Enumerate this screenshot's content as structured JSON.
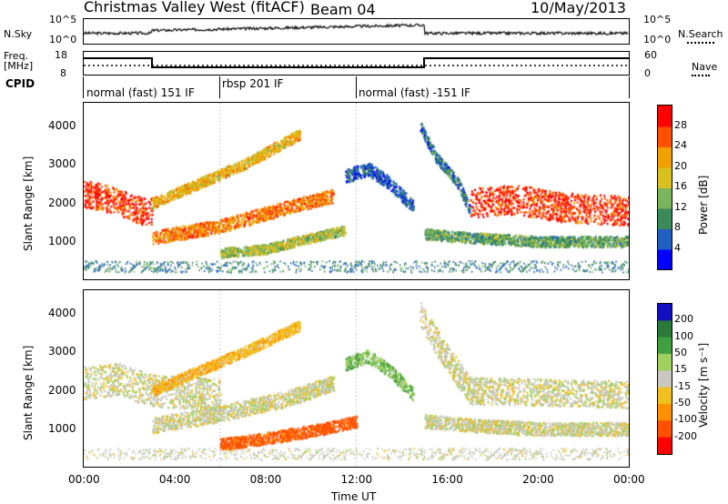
{
  "header": {
    "station": "Christmas Valley West (fitACF)",
    "beam": "Beam 04",
    "date": "10/May/2013"
  },
  "controls": {
    "nsky_label": "N.Sky",
    "nsky_ticks": [
      "10^5",
      "10^0"
    ],
    "nsearch_label": "N.Search",
    "nsearch_ticks": [
      "10^5",
      "10^0"
    ],
    "freq_label": "Freq.",
    "freq_unit": "[MHz]",
    "freq_ticks": [
      "18",
      "8"
    ],
    "nave_label": "Nave",
    "nave_ticks": [
      "60",
      "0"
    ],
    "cpid_label": "CPID",
    "cpid_segments": [
      {
        "label": "normal (fast) 151 IF",
        "start_hour": 0,
        "end_hour": 6
      },
      {
        "label": "rbsp 201 IF",
        "start_hour": 6,
        "end_hour": 12
      },
      {
        "label": "normal (fast) -151 IF",
        "start_hour": 12,
        "end_hour": 24
      }
    ]
  },
  "colors": {
    "power_scale": [
      "#0000ff",
      "#2060c0",
      "#3a8a5a",
      "#7ab55c",
      "#d8c020",
      "#f0a000",
      "#ff5000",
      "#ff0000"
    ],
    "velocity_scale": [
      "#1010c0",
      "#2a7a3a",
      "#40a040",
      "#a0d060",
      "#c8c8c0",
      "#f0c020",
      "#ff9000",
      "#ff5000",
      "#ff0000"
    ]
  },
  "chart_data": [
    {
      "type": "heatmap",
      "name": "power",
      "xlabel": "Time UT",
      "ylabel": "Slant Range [km]",
      "xlim": [
        0,
        24
      ],
      "ylim": [
        0,
        4600
      ],
      "xticks": [
        "00:00",
        "04:00",
        "08:00",
        "12:00",
        "16:00",
        "20:00",
        "00:00"
      ],
      "yticks": [
        1000,
        2000,
        3000,
        4000
      ],
      "colorbar": {
        "label": "Power [dB]",
        "ticks": [
          4,
          8,
          12,
          16,
          20,
          24,
          28
        ]
      },
      "bands": [
        {
          "x": [
            0,
            1.2,
            2.5,
            3.0
          ],
          "y": [
            2250,
            2100,
            1800,
            1800
          ],
          "width": 500,
          "value": 28
        },
        {
          "x": [
            3.0,
            6.0,
            9.0,
            11.0
          ],
          "y": [
            1100,
            1400,
            1900,
            2200
          ],
          "width": 250,
          "value": 24
        },
        {
          "x": [
            3.0,
            5.0,
            7.0,
            9.5
          ],
          "y": [
            2000,
            2500,
            3000,
            3800
          ],
          "width": 200,
          "value": 20
        },
        {
          "x": [
            6.0,
            8.0,
            10.0,
            11.5
          ],
          "y": [
            700,
            800,
            1100,
            1300
          ],
          "width": 180,
          "value": 16
        },
        {
          "x": [
            11.5,
            12.5,
            13.5,
            14.5
          ],
          "y": [
            2700,
            2900,
            2500,
            1900
          ],
          "width": 250,
          "value": 6
        },
        {
          "x": [
            14.8,
            15.5,
            16.5,
            17.0
          ],
          "y": [
            4000,
            3200,
            2500,
            1800
          ],
          "width": 200,
          "value": 8
        },
        {
          "x": [
            17.0,
            19.0,
            21.0,
            24.0
          ],
          "y": [
            2000,
            2100,
            1900,
            1800
          ],
          "width": 550,
          "value": 28
        },
        {
          "x": [
            15.0,
            17.0,
            20.0,
            24.0
          ],
          "y": [
            1200,
            1100,
            1000,
            1000
          ],
          "width": 200,
          "value": 12
        }
      ]
    },
    {
      "type": "heatmap",
      "name": "velocity",
      "xlabel": "Time UT",
      "ylabel": "Slant Range [km]",
      "xlim": [
        0,
        24
      ],
      "ylim": [
        0,
        4600
      ],
      "xticks": [
        "00:00",
        "04:00",
        "08:00",
        "12:00",
        "16:00",
        "20:00",
        "00:00"
      ],
      "yticks": [
        1000,
        2000,
        3000,
        4000
      ],
      "colorbar": {
        "label": "Velocity [m s⁻¹]",
        "ticks": [
          200,
          100,
          50,
          15,
          -15,
          -50,
          -100,
          -200
        ]
      },
      "bands": [
        {
          "x": [
            0,
            1.5,
            3.0,
            6.0
          ],
          "y": [
            2200,
            2300,
            2000,
            1900
          ],
          "width": 600,
          "value": 0
        },
        {
          "x": [
            3.0,
            6.0,
            9.0,
            11.0
          ],
          "y": [
            1100,
            1400,
            1800,
            2200
          ],
          "width": 300,
          "value": 0
        },
        {
          "x": [
            3.0,
            5.0,
            7.0,
            9.5
          ],
          "y": [
            2000,
            2500,
            3000,
            3700
          ],
          "width": 200,
          "value": -40
        },
        {
          "x": [
            6.0,
            8.5,
            10.5,
            12.0
          ],
          "y": [
            600,
            800,
            1000,
            1200
          ],
          "width": 220,
          "value": -120
        },
        {
          "x": [
            11.5,
            12.5,
            13.5,
            14.5
          ],
          "y": [
            2700,
            2900,
            2500,
            1900
          ],
          "width": 250,
          "value": 40
        },
        {
          "x": [
            14.8,
            15.8,
            17.0,
            24.0
          ],
          "y": [
            4000,
            3000,
            2000,
            1900
          ],
          "width": 500,
          "value": 0
        },
        {
          "x": [
            15.0,
            17.0,
            20.0,
            24.0
          ],
          "y": [
            1200,
            1100,
            1000,
            1000
          ],
          "width": 250,
          "value": 0
        }
      ]
    }
  ]
}
